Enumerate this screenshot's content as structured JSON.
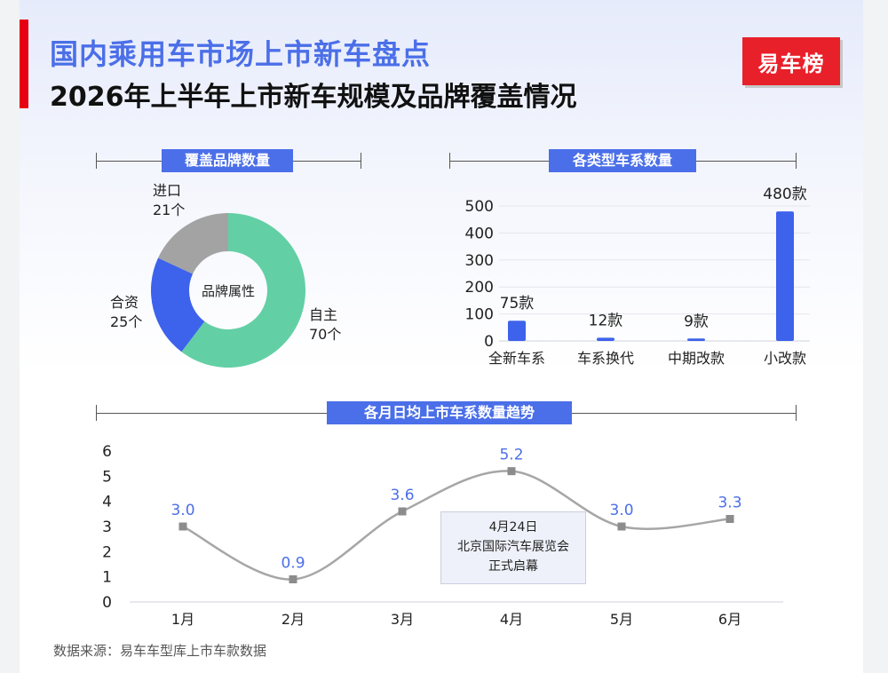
{
  "header": {
    "title": "国内乘用车市场上市新车盘点",
    "subtitle": "2026年上半年上市新车规模及品牌覆盖情况",
    "logo_text": "易车榜"
  },
  "colors": {
    "accent": "#4b6fe8",
    "brand_red": "#e8202a",
    "donut_green": "#63cfa5",
    "donut_blue": "#3d62eb",
    "donut_gray": "#a3a3a3",
    "line_gray": "#a6a6a6"
  },
  "footer": {
    "source": "数据来源：易车车型库上市车款数据"
  },
  "chart_data": [
    {
      "type": "pie",
      "title": "覆盖品牌数量",
      "center_label": "品牌属性",
      "slices": [
        {
          "name": "自主",
          "value": 70,
          "label": "70个",
          "color": "#63cfa5"
        },
        {
          "name": "合资",
          "value": 25,
          "label": "25个",
          "color": "#3d62eb"
        },
        {
          "name": "进口",
          "value": 21,
          "label": "21个",
          "color": "#a3a3a3"
        }
      ]
    },
    {
      "type": "bar",
      "title": "各类型车系数量",
      "categories": [
        "全新车系",
        "车系换代",
        "中期改款",
        "小改款"
      ],
      "values": [
        75,
        12,
        9,
        480
      ],
      "data_labels": [
        "75款",
        "12款",
        "9款",
        "480款"
      ],
      "ylim": [
        0,
        500
      ],
      "yticks": [
        "0",
        "100",
        "200",
        "300",
        "400",
        "500"
      ],
      "grid": true
    },
    {
      "type": "line",
      "title": "各月日均上市车系数量趋势",
      "categories": [
        "1月",
        "2月",
        "3月",
        "4月",
        "5月",
        "6月"
      ],
      "values": [
        3.0,
        0.9,
        3.6,
        5.2,
        3.0,
        3.3
      ],
      "data_labels": [
        "3.0",
        "0.9",
        "3.6",
        "5.2",
        "3.0",
        "3.3"
      ],
      "ylim": [
        0,
        6
      ],
      "yticks": [
        "0",
        "1",
        "2",
        "3",
        "4",
        "5",
        "6"
      ],
      "annotation": [
        "4月24日",
        "北京国际汽车展览会",
        "正式启幕"
      ]
    }
  ]
}
